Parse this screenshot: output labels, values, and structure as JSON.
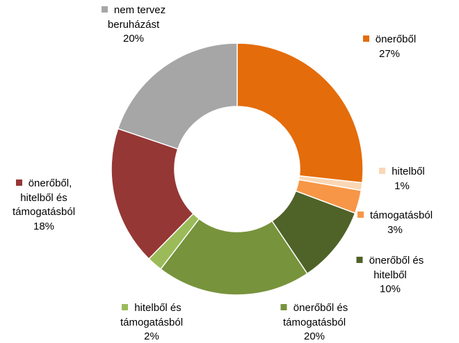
{
  "chart_data": {
    "type": "donut",
    "categories": [
      "önerőből",
      "hitelből",
      "támogatásból",
      "önerőből és hitelből",
      "önerőből és támogatásból",
      "hitelből és támogatásból",
      "önerőből, hitelből és támogatásból",
      "nem tervez beruházást"
    ],
    "values": [
      27,
      1,
      3,
      10,
      20,
      2,
      18,
      20
    ],
    "value_labels": [
      "27%",
      "1%",
      "3%",
      "10%",
      "20%",
      "2%",
      "18%",
      "20%"
    ],
    "colors": [
      "#E46C0A",
      "#FAD7B5",
      "#F79646",
      "#4F6228",
      "#77933C",
      "#9BBB59",
      "#953735",
      "#A6A6A6"
    ]
  }
}
